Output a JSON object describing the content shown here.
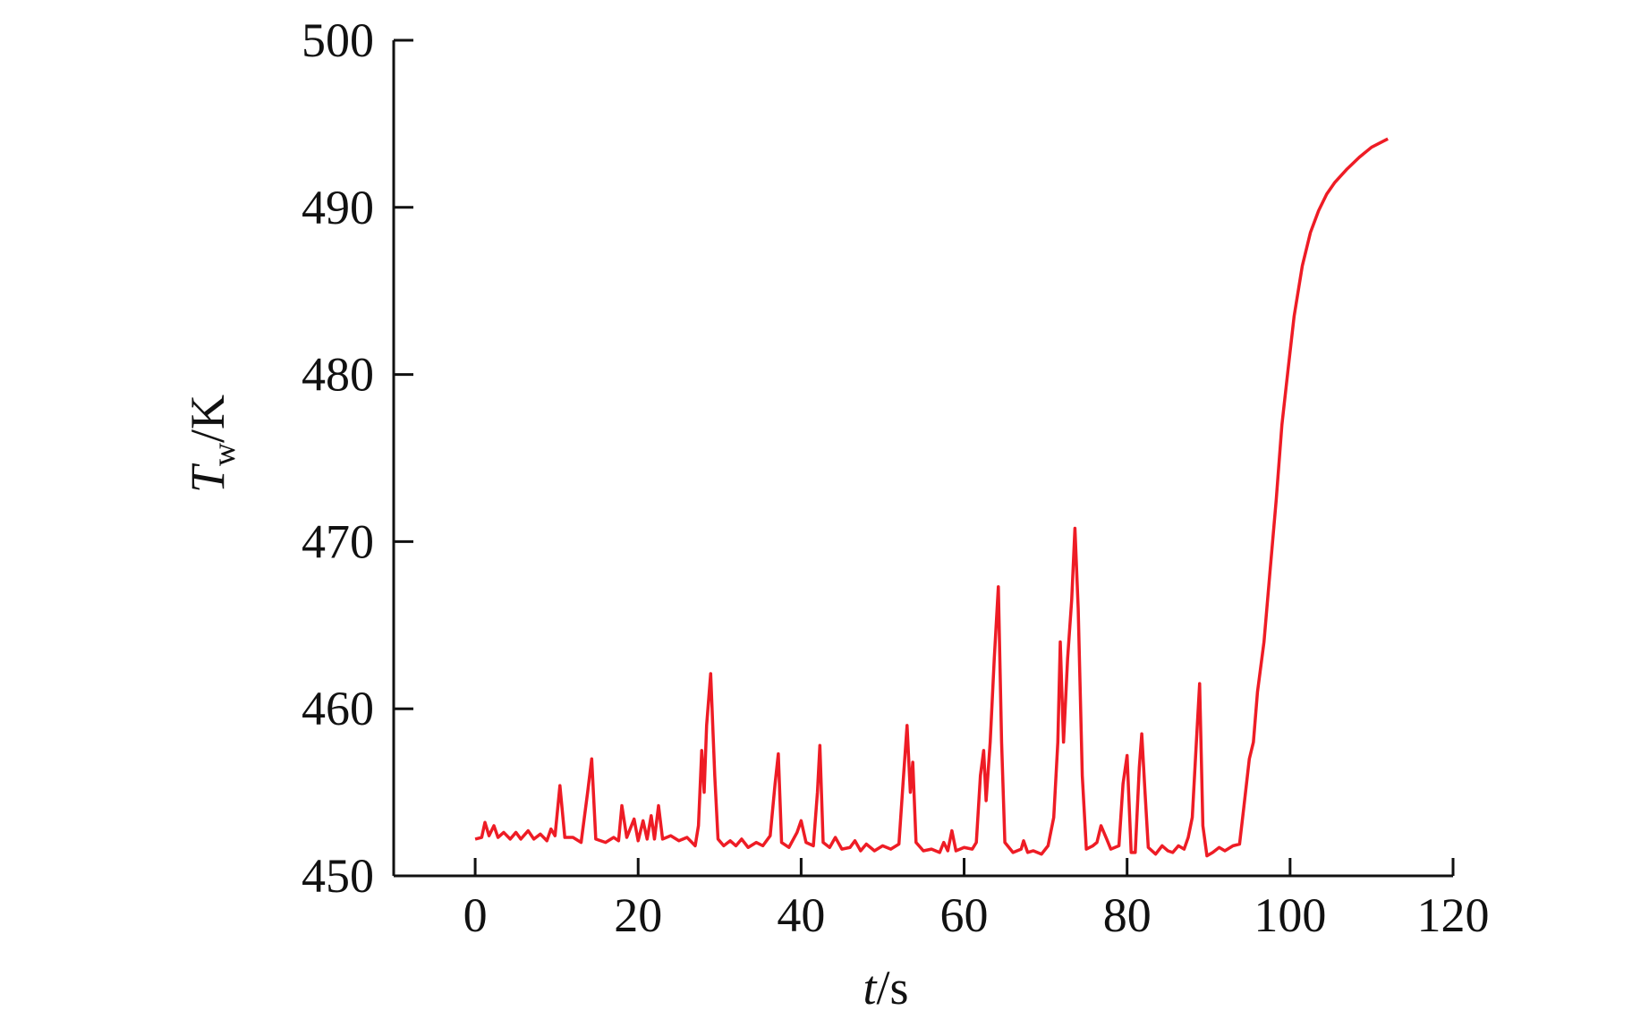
{
  "chart_data": {
    "type": "line",
    "xlabel": {
      "symbol": "t",
      "unit": "/s"
    },
    "ylabel": {
      "symbol": "T",
      "subscript": "w",
      "unit": "/K"
    },
    "color": "#ee1c25",
    "xlim": [
      -10,
      120
    ],
    "ylim": [
      450,
      500
    ],
    "xticks": [
      0,
      20,
      40,
      60,
      80,
      100,
      120
    ],
    "yticks": [
      450,
      460,
      470,
      480,
      490,
      500
    ],
    "x": [
      0,
      0.8,
      1.2,
      1.7,
      2.3,
      2.8,
      3.5,
      4.3,
      5,
      5.6,
      6.5,
      7.2,
      8,
      8.8,
      9.3,
      9.8,
      10.4,
      11,
      12,
      13,
      13.8,
      14.3,
      14.8,
      16,
      17,
      17.6,
      18,
      18.6,
      19.5,
      20,
      20.6,
      21.1,
      21.6,
      22,
      22.5,
      23,
      24,
      25,
      26,
      27,
      27.4,
      27.8,
      28.1,
      28.4,
      28.9,
      29.4,
      29.8,
      30.5,
      31.3,
      32,
      32.7,
      33.5,
      34.5,
      35.3,
      36.2,
      36.8,
      37.2,
      37.6,
      38.5,
      39.5,
      40,
      40.6,
      41.5,
      42,
      42.3,
      42.7,
      43.5,
      44.2,
      45,
      46,
      46.6,
      47.3,
      48,
      49,
      50,
      51,
      52,
      52.5,
      53,
      53.4,
      53.7,
      54.1,
      55,
      56,
      57,
      57.5,
      58,
      58.5,
      59,
      60,
      61,
      61.5,
      62,
      62.4,
      62.7,
      63.2,
      63.7,
      64.2,
      64.6,
      65,
      66,
      67,
      67.3,
      67.8,
      68.5,
      69.5,
      70.3,
      71,
      71.5,
      71.8,
      72.2,
      72.7,
      73.2,
      73.6,
      74,
      74.5,
      75,
      75.8,
      76.3,
      76.8,
      77.5,
      78,
      79,
      79.5,
      80,
      80.5,
      81,
      81.5,
      81.8,
      82.2,
      82.6,
      83.5,
      84.3,
      85,
      85.6,
      86.3,
      87,
      87.5,
      88,
      88.5,
      88.9,
      89.3,
      89.8,
      90.5,
      91.3,
      92,
      93,
      93.8,
      94.3,
      95,
      95.5,
      96,
      96.8,
      97.5,
      98.3,
      99,
      99.8,
      100.5,
      101.5,
      102.5,
      103.5,
      104.5,
      105.5,
      107,
      108.5,
      110,
      112
    ],
    "values": [
      452.2,
      452.3,
      453.2,
      452.4,
      453.0,
      452.3,
      452.6,
      452.2,
      452.6,
      452.2,
      452.7,
      452.2,
      452.5,
      452.1,
      452.8,
      452.4,
      455.4,
      452.3,
      452.3,
      452.0,
      455.0,
      457.0,
      452.2,
      452.0,
      452.3,
      452.1,
      454.2,
      452.3,
      453.4,
      452.1,
      453.3,
      452.2,
      453.6,
      452.2,
      454.2,
      452.2,
      452.4,
      452.1,
      452.3,
      451.8,
      453.0,
      457.5,
      455.0,
      459.0,
      462.1,
      456.0,
      452.2,
      451.8,
      452.1,
      451.8,
      452.2,
      451.7,
      452.0,
      451.8,
      452.4,
      455.5,
      457.3,
      452.0,
      451.7,
      452.6,
      453.3,
      452.0,
      451.8,
      455.0,
      457.8,
      452.0,
      451.7,
      452.3,
      451.6,
      451.7,
      452.1,
      451.5,
      451.9,
      451.5,
      451.8,
      451.6,
      451.9,
      455.5,
      459.0,
      455.0,
      456.8,
      452.0,
      451.5,
      451.6,
      451.4,
      452.0,
      451.5,
      452.7,
      451.5,
      451.7,
      451.6,
      452.0,
      456.0,
      457.5,
      454.5,
      458.0,
      463.0,
      467.3,
      458.0,
      452.0,
      451.4,
      451.6,
      452.1,
      451.4,
      451.5,
      451.3,
      451.8,
      453.5,
      458.0,
      464.0,
      458.0,
      463.0,
      466.5,
      470.8,
      466.0,
      456.0,
      451.6,
      451.8,
      452.0,
      453.0,
      452.2,
      451.6,
      451.8,
      455.5,
      457.2,
      451.4,
      451.4,
      456.5,
      458.5,
      455.0,
      451.7,
      451.3,
      451.8,
      451.5,
      451.4,
      451.8,
      451.6,
      452.3,
      453.5,
      458.0,
      461.5,
      453.0,
      451.2,
      451.4,
      451.7,
      451.5,
      451.8,
      451.9,
      454.0,
      457.0,
      458.0,
      461.0,
      464.0,
      468.0,
      472.5,
      477.0,
      480.5,
      483.5,
      486.5,
      488.5,
      489.8,
      490.8,
      491.5,
      492.3,
      493.0,
      493.6,
      494.1
    ]
  }
}
